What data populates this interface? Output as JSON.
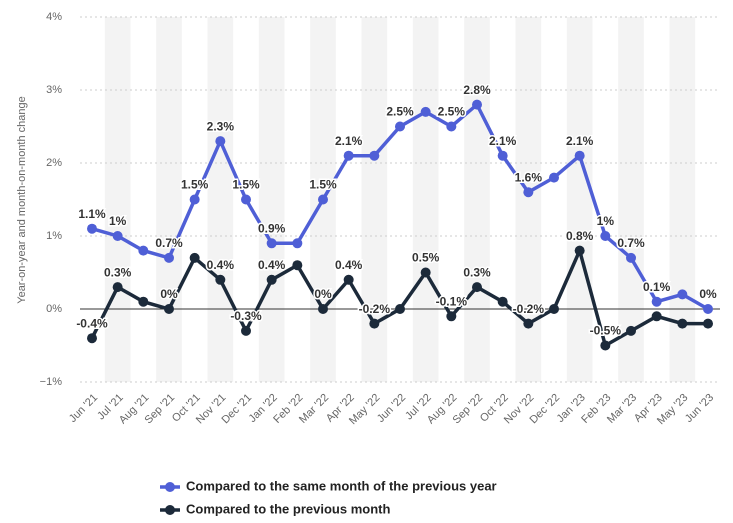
{
  "chart_data": {
    "type": "line",
    "y_label": "Year-on-year and month-on-month change",
    "categories": [
      "Jun '21",
      "Jul '21",
      "Aug '21",
      "Sep '21",
      "Oct '21",
      "Nov '21",
      "Dec '21",
      "Jan '22",
      "Feb '22",
      "Mar '22",
      "Apr '22",
      "May '22",
      "Jun '22",
      "Jul '22",
      "Aug '22",
      "Sep '22",
      "Oct '22",
      "Nov '22",
      "Dec '22",
      "Jan '23",
      "Feb '23",
      "Mar '23",
      "Apr '23",
      "May '23",
      "Jun '23"
    ],
    "series": [
      {
        "name": "Compared to the same month of the previous year",
        "color": "#4f5fd6",
        "values": [
          1.1,
          1.0,
          0.8,
          0.7,
          1.5,
          2.3,
          1.5,
          0.9,
          0.9,
          1.5,
          2.1,
          2.1,
          2.5,
          2.7,
          2.5,
          2.8,
          2.1,
          1.6,
          1.8,
          2.1,
          1.0,
          0.7,
          0.1,
          0.2,
          0.0
        ],
        "value_labels": [
          "1.1%",
          "1%",
          null,
          "0.7%",
          "1.5%",
          "2.3%",
          "1.5%",
          "0.9%",
          null,
          "1.5%",
          "2.1%",
          null,
          "2.5%",
          null,
          "2.5%",
          "2.8%",
          "2.1%",
          "1.6%",
          null,
          "2.1%",
          "1%",
          "0.7%",
          "0.1%",
          null,
          "0%"
        ]
      },
      {
        "name": "Compared to the previous month",
        "color": "#1c2a3a",
        "values": [
          -0.4,
          0.3,
          0.1,
          0.0,
          0.7,
          0.4,
          -0.3,
          0.4,
          0.6,
          0.0,
          0.4,
          -0.2,
          0.0,
          0.5,
          -0.1,
          0.3,
          0.1,
          -0.2,
          0.0,
          0.8,
          -0.5,
          -0.3,
          -0.1,
          -0.2,
          -0.2
        ],
        "value_labels": [
          "-0.4%",
          "0.3%",
          null,
          "0%",
          null,
          "0.4%",
          "-0.3%",
          "0.4%",
          null,
          "0%",
          "0.4%",
          "-0.2%",
          null,
          "0.5%",
          "-0.1%",
          "0.3%",
          null,
          "-0.2%",
          null,
          "0.8%",
          "-0.5%",
          null,
          null,
          null,
          null
        ]
      }
    ],
    "ylim": [
      -1,
      4
    ],
    "yticks": [
      {
        "value": -1,
        "label": "−1%"
      },
      {
        "value": 0,
        "label": "0%"
      },
      {
        "value": 1,
        "label": "1%"
      },
      {
        "value": 2,
        "label": "2%"
      },
      {
        "value": 3,
        "label": "3%"
      },
      {
        "value": 4,
        "label": "4%"
      }
    ],
    "grid": true
  }
}
